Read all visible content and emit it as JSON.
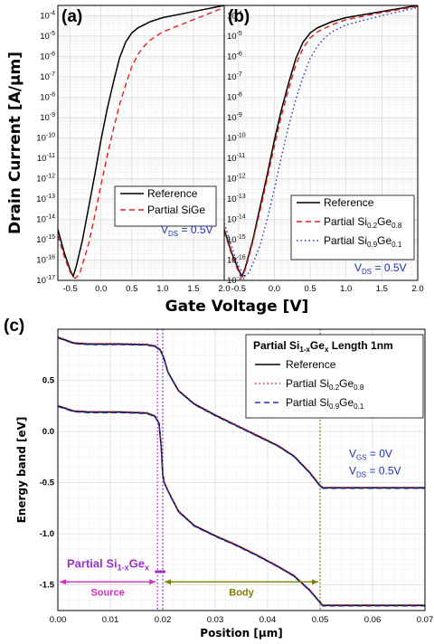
{
  "chart_data": [
    {
      "panel": "(a)",
      "type": "line",
      "xlabel": "Gate Voltage [V]",
      "ylabel": "Drain Current [A/μm]",
      "xlim": [
        -0.7,
        2.0
      ],
      "ylim_log10": [
        -17,
        -3.5
      ],
      "y_scale": "log",
      "x_ticks": [
        "-0.5",
        "0.0",
        "0.5",
        "1.0",
        "1.5",
        "2.0"
      ],
      "y_ticks_exp": [
        "-4",
        "-5",
        "-6",
        "-7",
        "-8",
        "-9",
        "-10",
        "-11",
        "-12",
        "-13",
        "-14",
        "-15",
        "-16",
        "-17"
      ],
      "y_tick_base": "10",
      "grid": true,
      "legend_position": "center-right",
      "series": [
        {
          "name": "Reference",
          "color": "#000000",
          "dash": "solid",
          "x": [
            -0.7,
            -0.6,
            -0.5,
            -0.45,
            -0.4,
            -0.3,
            -0.2,
            -0.1,
            0.0,
            0.1,
            0.2,
            0.3,
            0.4,
            0.5,
            0.6,
            0.8,
            1.0,
            1.5,
            2.0
          ],
          "y_log10": [
            -14.5,
            -15.6,
            -16.5,
            -16.8,
            -16.3,
            -15.0,
            -13.4,
            -11.8,
            -10.1,
            -8.6,
            -7.3,
            -6.1,
            -5.3,
            -4.85,
            -4.6,
            -4.3,
            -4.1,
            -3.8,
            -3.5
          ]
        },
        {
          "name": "Partial SiGe",
          "color": "#e02020",
          "dash": "dash",
          "x": [
            -0.7,
            -0.6,
            -0.5,
            -0.42,
            -0.35,
            -0.2,
            -0.1,
            0.0,
            0.1,
            0.2,
            0.3,
            0.4,
            0.5,
            0.6,
            0.7,
            0.8,
            1.0,
            1.5,
            2.0
          ],
          "y_log10": [
            -14.8,
            -15.8,
            -16.6,
            -16.9,
            -16.7,
            -15.2,
            -13.8,
            -12.3,
            -10.9,
            -9.6,
            -8.4,
            -7.4,
            -6.5,
            -5.9,
            -5.5,
            -5.2,
            -4.8,
            -4.2,
            -3.6
          ]
        }
      ],
      "annotation": {
        "v": "V",
        "sub": "DS",
        "rest": " = 0.5V"
      }
    },
    {
      "panel": "(b)",
      "type": "line",
      "xlim": [
        -0.7,
        2.0
      ],
      "ylim_log10": [
        -17,
        -3.5
      ],
      "y_scale": "log",
      "x_ticks": [
        "-0.5",
        "0.0",
        "0.5",
        "1.0",
        "1.5",
        "2.0"
      ],
      "y_ticks_exp": [
        "-4",
        "-5",
        "-6",
        "-7",
        "-8",
        "-9",
        "-10",
        "-11",
        "-12",
        "-13",
        "-14",
        "-15",
        "-16",
        "-17"
      ],
      "y_tick_base": "10",
      "grid": true,
      "legend_position": "bottom-right",
      "series": [
        {
          "name": "Reference",
          "color": "#000000",
          "dash": "solid",
          "x": [
            -0.7,
            -0.6,
            -0.5,
            -0.45,
            -0.4,
            -0.3,
            -0.2,
            -0.1,
            0.0,
            0.1,
            0.2,
            0.3,
            0.4,
            0.5,
            0.6,
            0.8,
            1.0,
            1.5,
            2.0
          ],
          "y_log10": [
            -14.5,
            -15.6,
            -16.5,
            -16.8,
            -16.3,
            -15.0,
            -13.4,
            -11.8,
            -10.1,
            -8.6,
            -7.3,
            -6.1,
            -5.3,
            -4.85,
            -4.6,
            -4.3,
            -4.1,
            -3.8,
            -3.5
          ]
        },
        {
          "name": "Partial Si0.2Ge0.8",
          "label_parts": [
            "Partial Si",
            "0.2",
            "Ge",
            "0.8"
          ],
          "color": "#e02020",
          "dash": "dash",
          "x": [
            -0.7,
            -0.6,
            -0.5,
            -0.45,
            -0.4,
            -0.3,
            -0.2,
            -0.1,
            0.0,
            0.1,
            0.2,
            0.3,
            0.4,
            0.5,
            0.6,
            0.8,
            1.0,
            1.5,
            2.0
          ],
          "y_log10": [
            -14.6,
            -15.7,
            -16.6,
            -16.85,
            -16.4,
            -15.1,
            -13.6,
            -12.0,
            -10.4,
            -8.9,
            -7.6,
            -6.4,
            -5.6,
            -5.1,
            -4.8,
            -4.45,
            -4.2,
            -3.85,
            -3.55
          ]
        },
        {
          "name": "Partial Si0.9Ge0.1",
          "label_parts": [
            "Partial Si",
            "0.9",
            "Ge",
            "0.1"
          ],
          "color": "#2030c0",
          "dash": "dot",
          "x": [
            -0.7,
            -0.6,
            -0.5,
            -0.42,
            -0.35,
            -0.2,
            -0.1,
            0.0,
            0.1,
            0.2,
            0.3,
            0.4,
            0.5,
            0.6,
            0.7,
            0.8,
            1.0,
            1.5,
            2.0
          ],
          "y_log10": [
            -14.2,
            -15.3,
            -16.3,
            -16.8,
            -16.6,
            -15.3,
            -14.0,
            -12.5,
            -10.9,
            -9.4,
            -8.1,
            -7.0,
            -6.1,
            -5.5,
            -5.1,
            -4.8,
            -4.45,
            -4.0,
            -3.6
          ]
        }
      ],
      "annotation": {
        "v": "V",
        "sub": "DS",
        "rest": " = 0.5V"
      }
    },
    {
      "panel": "(c)",
      "type": "line",
      "title_parts": [
        "Partial Si",
        "1-x",
        "Ge",
        "x",
        " Length 1nm"
      ],
      "xlabel": "Position [μm]",
      "ylabel": "Energy band [eV]",
      "xlim": [
        0.0,
        0.07
      ],
      "ylim": [
        -1.75,
        1.0
      ],
      "x_ticks": [
        "0.00",
        "0.01",
        "0.02",
        "0.03",
        "0.04",
        "0.05",
        "0.06",
        "0.07"
      ],
      "y_ticks": [
        "0.5",
        "0.0",
        "-0.5",
        "-1.0",
        "-1.5"
      ],
      "grid": true,
      "legend_position": "top-right",
      "series": [
        {
          "name": "Reference",
          "color": "#000000",
          "dash": "solid"
        },
        {
          "name": "Partial Si0.2Ge0.8",
          "label_parts": [
            "Partial Si",
            "0.2",
            "Ge",
            "0.8"
          ],
          "color": "#e02020",
          "dash": "dot"
        },
        {
          "name": "Partial Si0.9Ge0.1",
          "label_parts": [
            "Partial Si",
            "0.9",
            "Ge",
            "0.1"
          ],
          "color": "#2030c0",
          "dash": "dash"
        }
      ],
      "bands": {
        "conduction": {
          "x": [
            0.0,
            0.003,
            0.006,
            0.012,
            0.017,
            0.0185,
            0.0195,
            0.0202,
            0.021,
            0.023,
            0.026,
            0.03,
            0.034,
            0.038,
            0.042,
            0.045,
            0.048,
            0.05,
            0.0505,
            0.06,
            0.07
          ],
          "y": [
            0.92,
            0.865,
            0.855,
            0.855,
            0.85,
            0.835,
            0.8,
            0.72,
            0.58,
            0.4,
            0.27,
            0.16,
            0.06,
            -0.04,
            -0.14,
            -0.24,
            -0.4,
            -0.53,
            -0.55,
            -0.55,
            -0.55
          ]
        },
        "valence": {
          "x": [
            0.0,
            0.003,
            0.006,
            0.012,
            0.017,
            0.0185,
            0.0193,
            0.0197,
            0.02,
            0.0203,
            0.021,
            0.023,
            0.026,
            0.03,
            0.034,
            0.038,
            0.042,
            0.045,
            0.048,
            0.05,
            0.0505,
            0.06,
            0.07
          ],
          "y": [
            0.25,
            0.2,
            0.19,
            0.19,
            0.18,
            0.15,
            0.08,
            -0.15,
            -0.42,
            -0.5,
            -0.58,
            -0.78,
            -0.92,
            -1.02,
            -1.11,
            -1.21,
            -1.32,
            -1.41,
            -1.55,
            -1.67,
            -1.7,
            -1.7,
            -1.7
          ]
        }
      },
      "markers": {
        "dotted_x": [
          0.019,
          0.02,
          0.05
        ]
      },
      "annotations": {
        "region_left": "Source",
        "region_right": "Body",
        "region_y": -1.47,
        "material_parts": [
          "Partial Si",
          "1-x",
          "Ge",
          "x"
        ],
        "vgs": {
          "v": "V",
          "sub": "GS",
          "rest": " = 0V"
        },
        "vds": {
          "v": "V",
          "sub": "DS",
          "rest": " = 0.5V"
        }
      }
    }
  ],
  "colors": {
    "reference": "#000000",
    "si02ge08": "#e02020",
    "si09ge01": "#2030c0",
    "material_label": "#9b30d0",
    "source_label": "#d030c0",
    "body_label": "#808000",
    "grid": "#d8d8d8"
  }
}
